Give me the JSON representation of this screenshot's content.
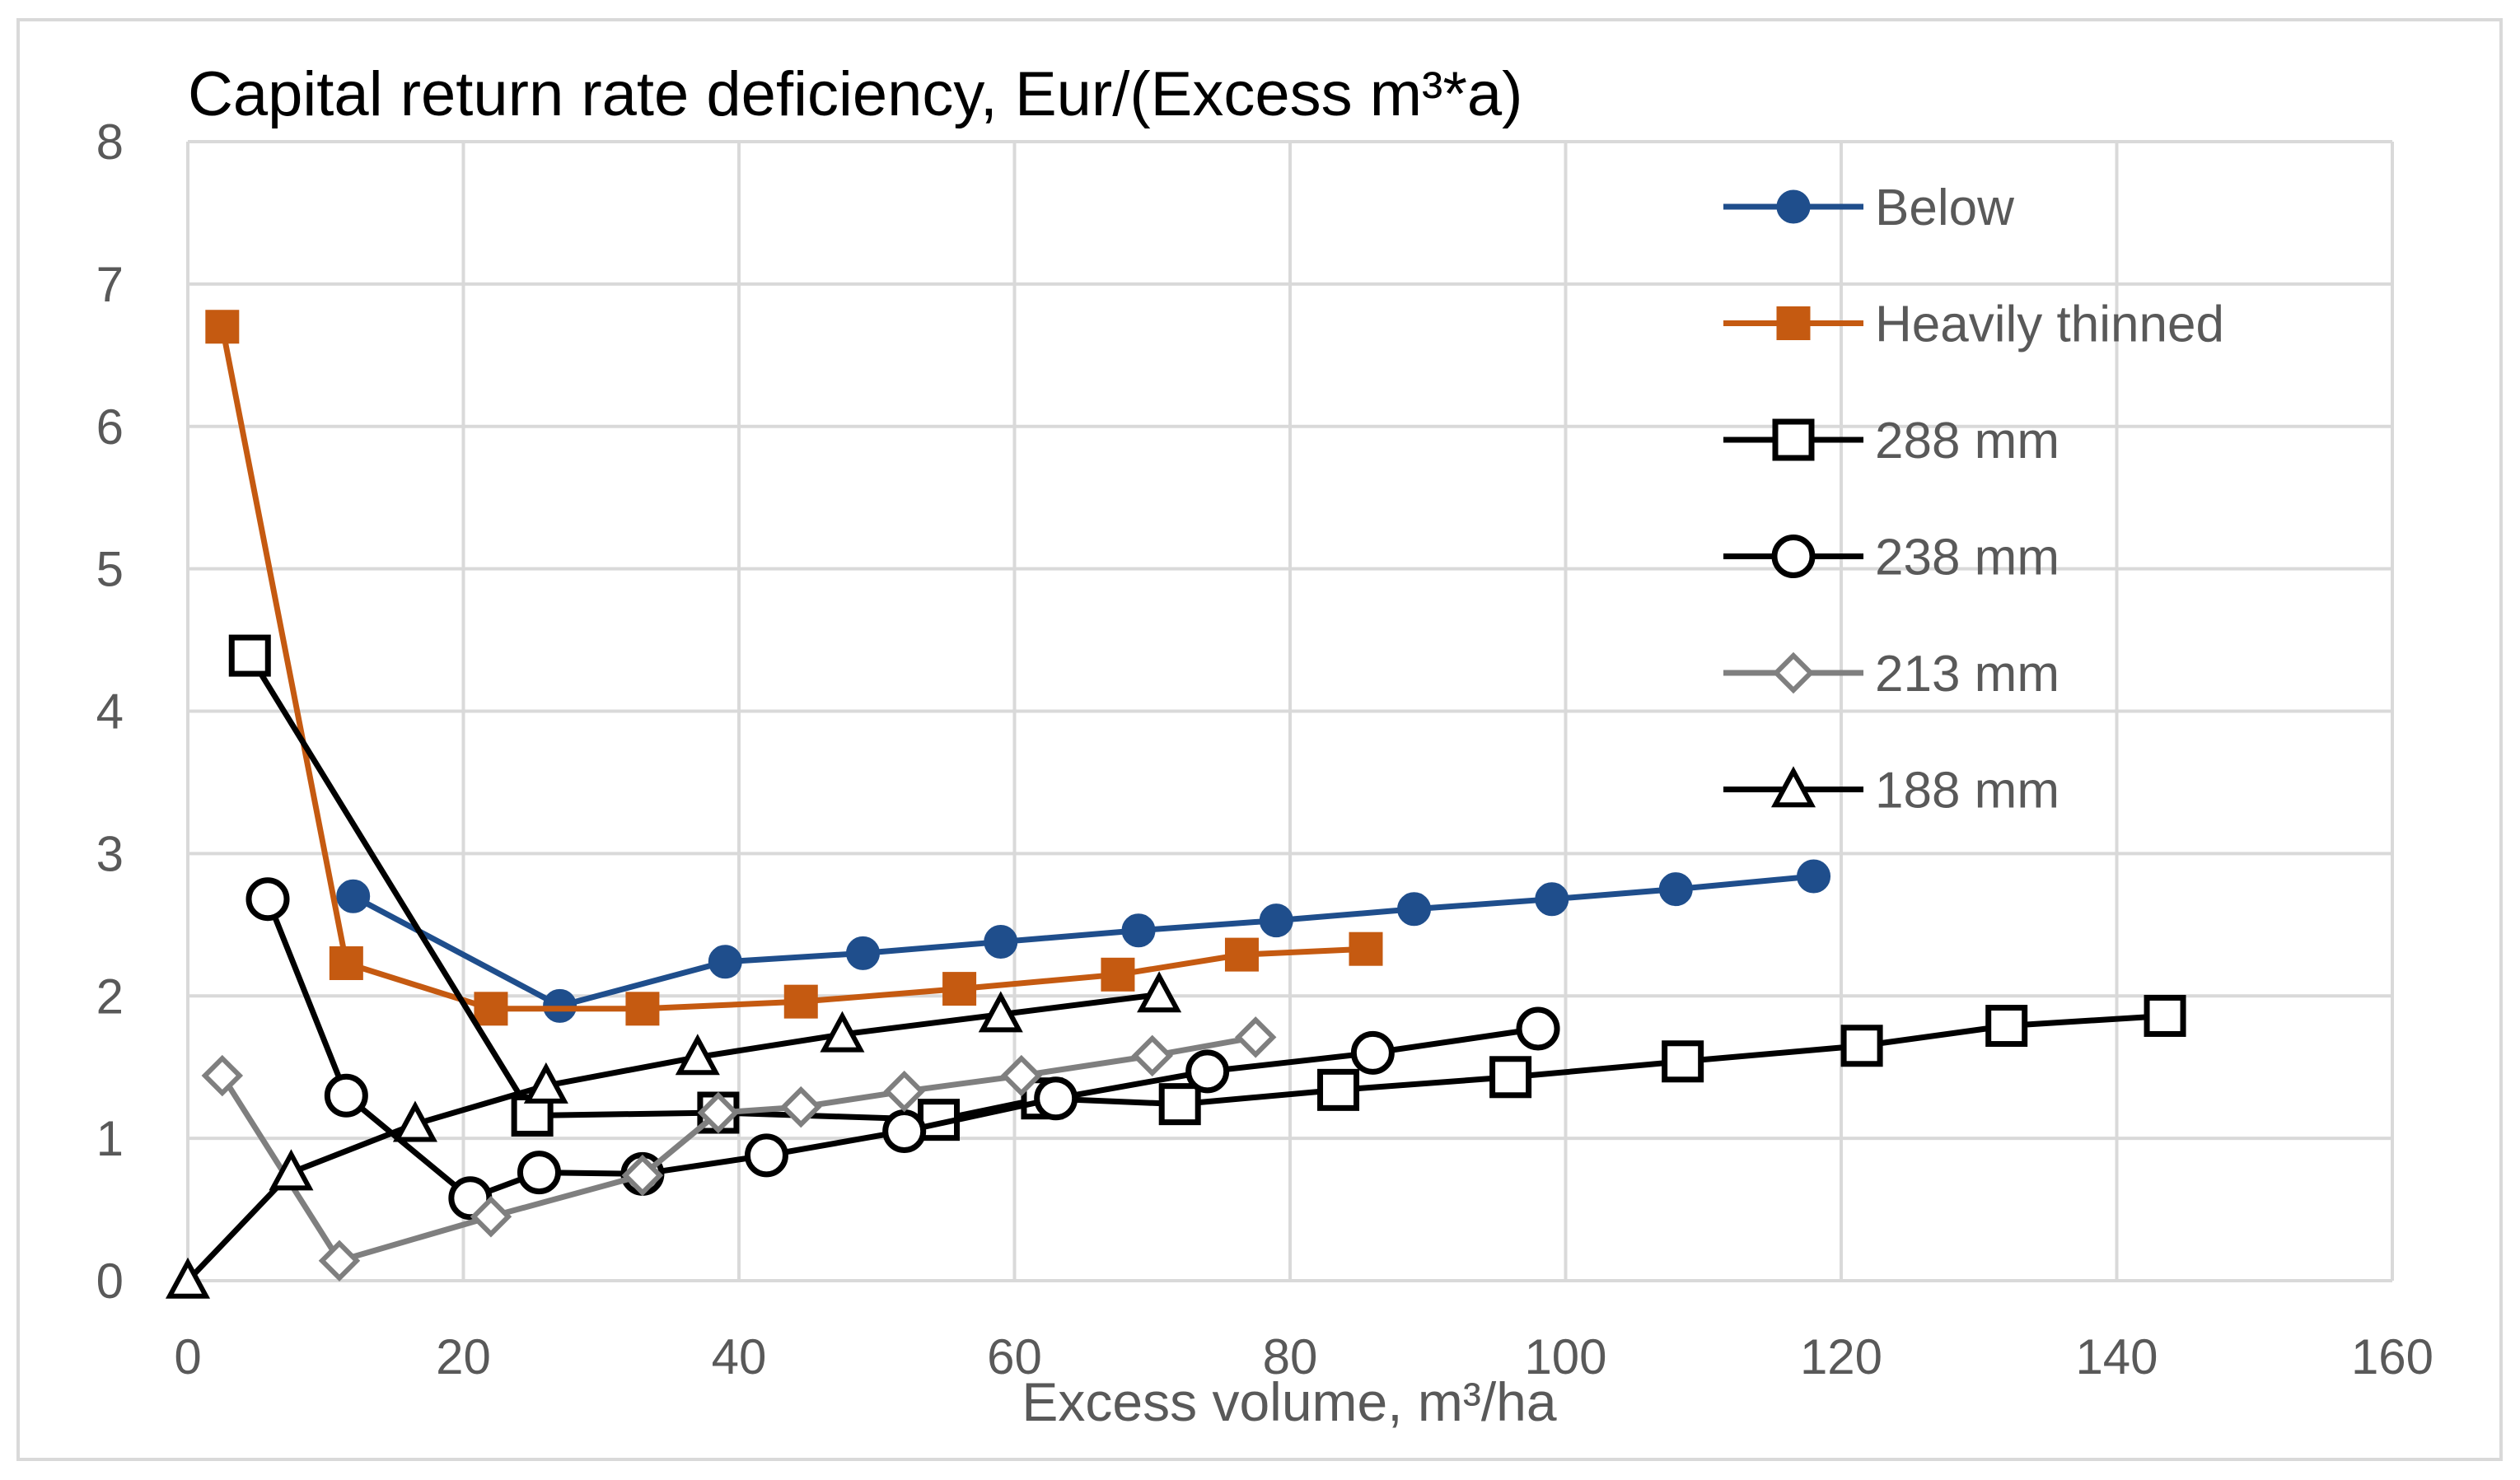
{
  "chart_data": {
    "type": "line",
    "title": "Capital return rate deficiency,  Eur/(Excess m³*a)",
    "xlabel": "Excess volume, m³/ha",
    "ylabel": "",
    "xlim": [
      0,
      160
    ],
    "ylim": [
      0,
      8
    ],
    "xticks": [
      "0",
      "20",
      "40",
      "60",
      "80",
      "100",
      "120",
      "140",
      "160"
    ],
    "yticks": [
      "0",
      "1",
      "2",
      "3",
      "4",
      "5",
      "6",
      "7",
      "8"
    ],
    "grid": true,
    "legend": "right",
    "series": [
      {
        "name": "Below",
        "color": "#1f4e8c",
        "marker": "circle-filled",
        "x": [
          12,
          27,
          39,
          49,
          59,
          69,
          79,
          89,
          99,
          108,
          118
        ],
        "y": [
          2.7,
          1.93,
          2.24,
          2.3,
          2.38,
          2.46,
          2.53,
          2.61,
          2.68,
          2.75,
          2.84
        ]
      },
      {
        "name": "Heavily thinned",
        "color": "#c55a11",
        "marker": "square-filled",
        "x": [
          2.5,
          11.5,
          22,
          33,
          44.5,
          56,
          67.5,
          76.5,
          85.5
        ],
        "y": [
          6.7,
          2.23,
          1.91,
          1.91,
          1.96,
          2.05,
          2.15,
          2.29,
          2.33
        ]
      },
      {
        "name": "288 mm",
        "color": "#000000",
        "marker": "square-open",
        "x": [
          4.5,
          25,
          38.5,
          54.5,
          62,
          72,
          83.5,
          96,
          108.5,
          121.5,
          132,
          143.5
        ],
        "y": [
          4.39,
          1.16,
          1.18,
          1.13,
          1.28,
          1.24,
          1.34,
          1.43,
          1.54,
          1.65,
          1.79,
          1.86
        ]
      },
      {
        "name": "238 mm",
        "color": "#000000",
        "marker": "circle-open",
        "x": [
          5.8,
          11.5,
          20.5,
          25.5,
          33,
          42,
          52,
          63,
          74,
          86,
          98
        ],
        "y": [
          2.68,
          1.3,
          0.58,
          0.76,
          0.75,
          0.88,
          1.05,
          1.28,
          1.47,
          1.6,
          1.77
        ]
      },
      {
        "name": "213 mm",
        "color": "#7f7f7f",
        "marker": "diamond-open",
        "x": [
          2.5,
          11,
          22,
          33,
          38.5,
          44.5,
          52,
          60.5,
          70,
          77.5
        ],
        "y": [
          1.44,
          0.14,
          0.45,
          0.74,
          1.18,
          1.22,
          1.33,
          1.44,
          1.58,
          1.71
        ]
      },
      {
        "name": "188 mm",
        "color": "#000000",
        "marker": "triangle-open",
        "x": [
          0,
          7.5,
          16.5,
          26,
          37,
          47.5,
          59,
          70.5
        ],
        "y": [
          0,
          0.76,
          1.1,
          1.37,
          1.57,
          1.73,
          1.87,
          2.01
        ]
      }
    ]
  }
}
